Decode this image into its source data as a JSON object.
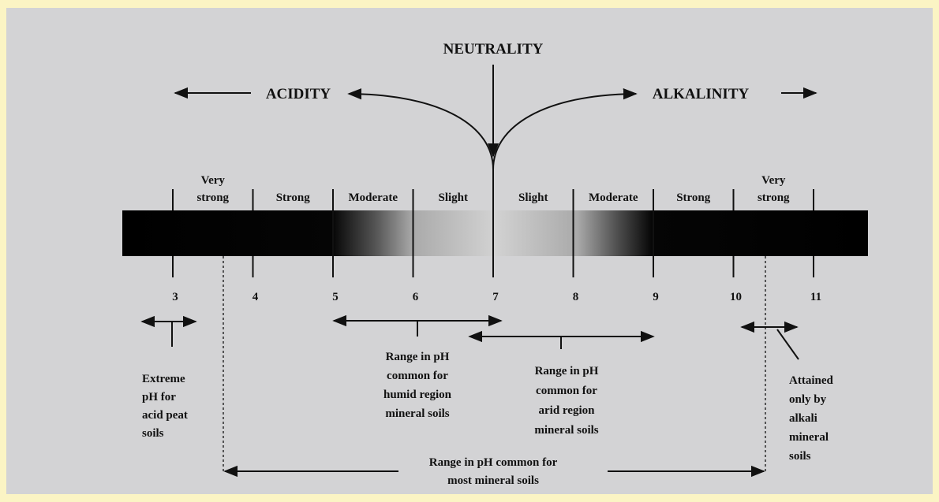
{
  "title": "NEUTRALITY",
  "left_label": "ACIDITY",
  "right_label": "ALKALINITY",
  "zones": [
    {
      "lines": [
        "Very",
        "strong"
      ]
    },
    {
      "lines": [
        "Strong"
      ]
    },
    {
      "lines": [
        "Moderate"
      ]
    },
    {
      "lines": [
        "Slight"
      ]
    },
    {
      "lines": [
        "Slight"
      ]
    },
    {
      "lines": [
        "Moderate"
      ]
    },
    {
      "lines": [
        "Strong"
      ]
    },
    {
      "lines": [
        "Very",
        "strong"
      ]
    }
  ],
  "scale": [
    3,
    4,
    5,
    6,
    7,
    8,
    9,
    10,
    11
  ],
  "annotations": [
    {
      "lines": [
        "Extreme",
        "pH for",
        "acid peat",
        "soils"
      ]
    },
    {
      "lines": [
        "Range in pH",
        "common for",
        "humid region",
        "mineral soils"
      ]
    },
    {
      "lines": [
        "Range in pH",
        "common for",
        "arid region",
        "mineral soils"
      ]
    },
    {
      "lines": [
        "Attained",
        "only by",
        "alkali",
        "mineral",
        "soils"
      ]
    },
    {
      "lines": [
        "Range in pH common for",
        "most mineral soils"
      ]
    }
  ]
}
